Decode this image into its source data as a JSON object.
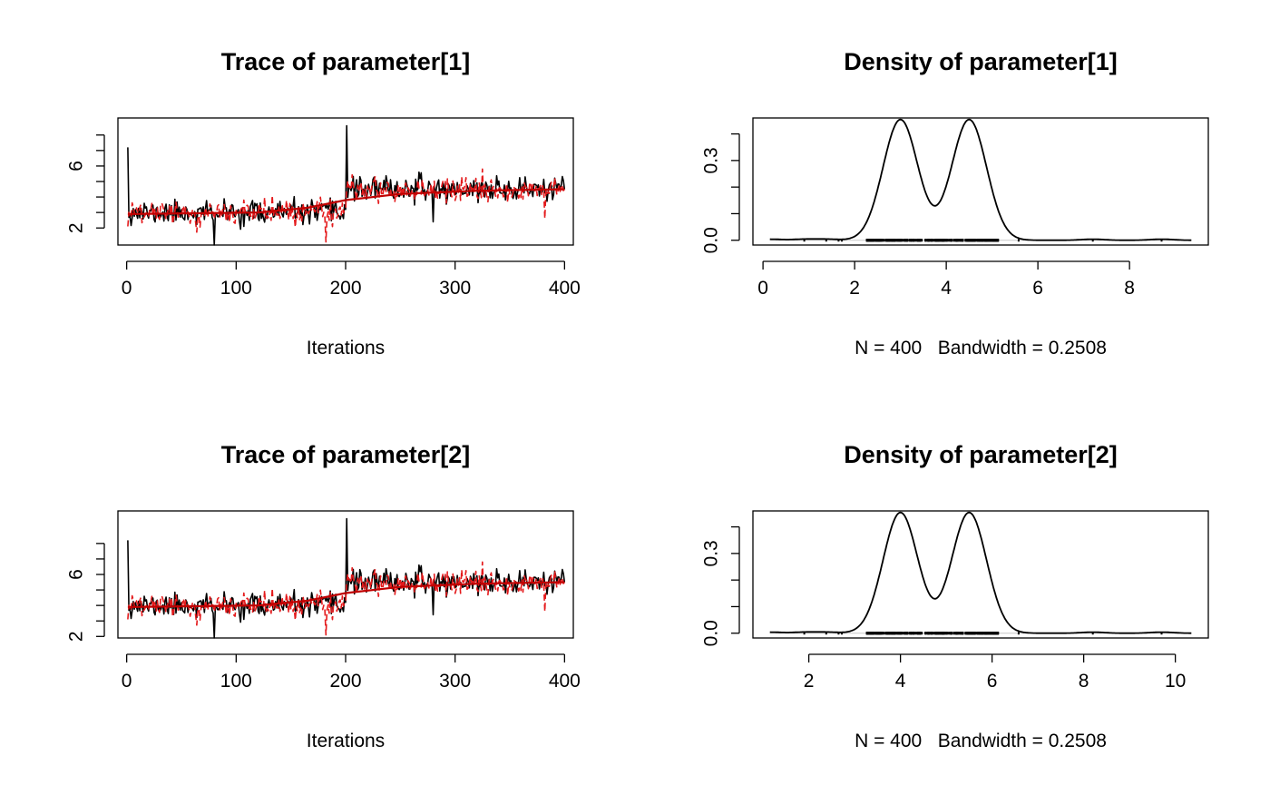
{
  "figure": {
    "background": "#ffffff"
  },
  "chart_data": [
    {
      "panel": "trace-1",
      "type": "line",
      "title": "Trace of parameter[1]",
      "xlabel": "Iterations",
      "ylabel": "",
      "xlim": [
        -8,
        408
      ],
      "ylim": [
        0.9,
        9.1
      ],
      "xticks": [
        0,
        100,
        200,
        300,
        400
      ],
      "yticks": [
        2,
        3,
        4,
        5,
        6,
        7,
        8
      ],
      "ytick_labels": [
        "2",
        "",
        "",
        "",
        "6",
        "",
        ""
      ],
      "series": [
        {
          "color": "#000000",
          "dash": "solid",
          "seed": 11,
          "spikes": [
            [
              1,
              7.2
            ],
            [
              80,
              0.9
            ],
            [
              201,
              8.6
            ],
            [
              280,
              2.4
            ]
          ],
          "segments": [
            {
              "from": 1,
              "to": 200,
              "mean": 3.0,
              "sd": 0.38,
              "start": 3.1,
              "end": 3.2
            },
            {
              "from": 201,
              "to": 400,
              "mean": 4.5,
              "sd": 0.38,
              "start": 4.5,
              "end": 4.5
            }
          ]
        },
        {
          "color": "#e41a1c",
          "dash": "dashed",
          "seed": 29,
          "spikes": [
            [
              1,
              2.1
            ],
            [
              182,
              1.1
            ],
            [
              325,
              5.8
            ],
            [
              382,
              2.6
            ]
          ],
          "segments": [
            {
              "from": 1,
              "to": 200,
              "mean": 3.0,
              "sd": 0.38,
              "start": 3.1,
              "end": 3.2
            },
            {
              "from": 201,
              "to": 400,
              "mean": 4.5,
              "sd": 0.38,
              "start": 4.5,
              "end": 4.5
            }
          ]
        }
      ],
      "smooth": {
        "color": "#c00000",
        "points": [
          [
            1,
            2.9
          ],
          [
            120,
            3.0
          ],
          [
            165,
            3.3
          ],
          [
            200,
            3.8
          ],
          [
            250,
            4.2
          ],
          [
            320,
            4.4
          ],
          [
            400,
            4.5
          ]
        ]
      }
    },
    {
      "panel": "density-1",
      "type": "line",
      "title": "Density of parameter[1]",
      "xlabel": "N = 400   Bandwidth = 0.2508",
      "ylabel": "",
      "xlim": [
        -0.22,
        9.72
      ],
      "ylim": [
        -0.018,
        0.46
      ],
      "xticks": [
        0,
        2,
        4,
        6,
        8
      ],
      "yticks": [
        0.0,
        0.1,
        0.2,
        0.3,
        0.4
      ],
      "ytick_labels": [
        "0.0",
        "",
        "",
        "0.3",
        ""
      ],
      "curve_range": [
        0.15,
        9.35
      ],
      "components": [
        {
          "mean": 3.0,
          "sd": 0.38,
          "weight": 0.4325
        },
        {
          "mean": 4.5,
          "sd": 0.38,
          "weight": 0.4325
        },
        {
          "mean": 0.15,
          "sd": 0.2508,
          "weight": 0.0025
        },
        {
          "mean": 0.9,
          "sd": 0.2508,
          "weight": 0.0025
        },
        {
          "mean": 1.4,
          "sd": 0.2508,
          "weight": 0.0025
        },
        {
          "mean": 7.2,
          "sd": 0.2508,
          "weight": 0.0025
        },
        {
          "mean": 8.7,
          "sd": 0.2508,
          "weight": 0.0025
        }
      ],
      "rug": {
        "range": [
          2.05,
          5.35
        ],
        "count": 360,
        "seed": 7,
        "extra": [
          0.9,
          1.38,
          1.65,
          1.72,
          5.58,
          7.2,
          8.7
        ]
      }
    },
    {
      "panel": "trace-2",
      "type": "line",
      "title": "Trace of parameter[2]",
      "xlabel": "Iterations",
      "ylabel": "",
      "xlim": [
        -8,
        408
      ],
      "ylim": [
        1.9,
        10.1
      ],
      "xticks": [
        0,
        100,
        200,
        300,
        400
      ],
      "yticks": [
        2,
        3,
        4,
        5,
        6,
        7,
        8
      ],
      "ytick_labels": [
        "2",
        "",
        "",
        "",
        "6",
        "",
        ""
      ],
      "series": [
        {
          "color": "#000000",
          "dash": "solid",
          "seed": 11,
          "spikes": [
            [
              1,
              8.2
            ],
            [
              80,
              1.9
            ],
            [
              201,
              9.6
            ],
            [
              280,
              3.4
            ]
          ],
          "segments": [
            {
              "from": 1,
              "to": 200,
              "mean": 4.0,
              "sd": 0.38,
              "start": 4.1,
              "end": 4.2
            },
            {
              "from": 201,
              "to": 400,
              "mean": 5.5,
              "sd": 0.38,
              "start": 5.5,
              "end": 5.5
            }
          ]
        },
        {
          "color": "#e41a1c",
          "dash": "dashed",
          "seed": 29,
          "spikes": [
            [
              1,
              3.1
            ],
            [
              182,
              2.1
            ],
            [
              325,
              6.8
            ],
            [
              382,
              3.6
            ]
          ],
          "segments": [
            {
              "from": 1,
              "to": 200,
              "mean": 4.0,
              "sd": 0.38,
              "start": 4.1,
              "end": 4.2
            },
            {
              "from": 201,
              "to": 400,
              "mean": 5.5,
              "sd": 0.38,
              "start": 5.5,
              "end": 5.5
            }
          ]
        }
      ],
      "smooth": {
        "color": "#c00000",
        "points": [
          [
            1,
            3.9
          ],
          [
            120,
            4.0
          ],
          [
            165,
            4.3
          ],
          [
            200,
            4.8
          ],
          [
            250,
            5.2
          ],
          [
            320,
            5.4
          ],
          [
            400,
            5.5
          ]
        ]
      }
    },
    {
      "panel": "density-2",
      "type": "line",
      "title": "Density of parameter[2]",
      "xlabel": "N = 400   Bandwidth = 0.2508",
      "ylabel": "",
      "xlim": [
        0.78,
        10.72
      ],
      "ylim": [
        -0.018,
        0.46
      ],
      "xticks": [
        2,
        4,
        6,
        8,
        10
      ],
      "yticks": [
        0.0,
        0.1,
        0.2,
        0.3,
        0.4
      ],
      "ytick_labels": [
        "0.0",
        "",
        "",
        "0.3",
        ""
      ],
      "curve_range": [
        1.15,
        10.35
      ],
      "components": [
        {
          "mean": 4.0,
          "sd": 0.38,
          "weight": 0.4325
        },
        {
          "mean": 5.5,
          "sd": 0.38,
          "weight": 0.4325
        },
        {
          "mean": 1.15,
          "sd": 0.2508,
          "weight": 0.0025
        },
        {
          "mean": 1.9,
          "sd": 0.2508,
          "weight": 0.0025
        },
        {
          "mean": 2.4,
          "sd": 0.2508,
          "weight": 0.0025
        },
        {
          "mean": 8.2,
          "sd": 0.2508,
          "weight": 0.0025
        },
        {
          "mean": 9.7,
          "sd": 0.2508,
          "weight": 0.0025
        }
      ],
      "rug": {
        "range": [
          3.05,
          6.35
        ],
        "count": 360,
        "seed": 7,
        "extra": [
          1.9,
          2.38,
          2.65,
          2.72,
          6.58,
          8.2,
          9.7
        ]
      }
    }
  ]
}
